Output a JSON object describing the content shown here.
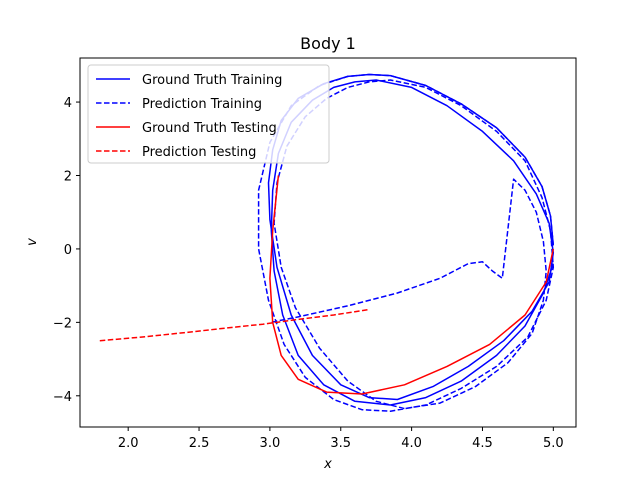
{
  "chart_data": {
    "type": "line",
    "title": "Body 1",
    "xlabel": "x",
    "ylabel": "v",
    "xlim": [
      1.66,
      5.16
    ],
    "ylim": [
      -4.85,
      5.2
    ],
    "xticks": [
      2.0,
      2.5,
      3.0,
      3.5,
      4.0,
      4.5,
      5.0
    ],
    "xtick_labels": [
      "2.0",
      "2.5",
      "3.0",
      "3.5",
      "4.0",
      "4.5",
      "5.0"
    ],
    "yticks": [
      -4,
      -2,
      0,
      2,
      4
    ],
    "ytick_labels": [
      "−4",
      "−2",
      "0",
      "2",
      "4"
    ],
    "grid": false,
    "legend_position": "top-left",
    "series": [
      {
        "name": "Ground Truth Training",
        "color": "#0000ff",
        "style": "solid",
        "x": [
          5.0,
          4.98,
          4.92,
          4.8,
          4.6,
          4.35,
          4.1,
          3.85,
          3.7,
          3.55,
          3.38,
          3.2,
          3.08,
          3.02,
          2.99,
          3.0,
          3.05,
          3.15,
          3.3,
          3.5,
          3.7,
          3.9,
          4.15,
          4.4,
          4.65,
          4.85,
          4.97,
          5.0,
          4.97,
          4.88,
          4.72,
          4.5,
          4.25,
          4.0,
          3.75,
          3.6,
          3.45,
          3.3,
          3.15,
          3.06,
          3.02,
          3.01,
          3.03,
          3.09,
          3.2,
          3.38,
          3.6,
          3.85,
          4.1,
          4.35,
          4.6,
          4.8,
          4.93,
          5.0
        ],
        "y": [
          0.1,
          0.9,
          1.7,
          2.5,
          3.3,
          3.95,
          4.45,
          4.72,
          4.75,
          4.7,
          4.5,
          4.1,
          3.5,
          2.7,
          1.8,
          0.8,
          -0.5,
          -1.8,
          -2.9,
          -3.7,
          -4.05,
          -4.1,
          -3.75,
          -3.2,
          -2.5,
          -1.7,
          -0.9,
          -0.1,
          0.7,
          1.5,
          2.4,
          3.2,
          3.9,
          4.4,
          4.6,
          4.55,
          4.4,
          4.05,
          3.45,
          2.6,
          1.6,
          0.5,
          -0.6,
          -1.8,
          -2.9,
          -3.7,
          -4.15,
          -4.25,
          -4.05,
          -3.6,
          -2.9,
          -2.1,
          -1.2,
          -0.4
        ]
      },
      {
        "name": "Prediction Training",
        "color": "#0000ff",
        "style": "dashed",
        "x": [
          5.0,
          4.98,
          4.92,
          4.8,
          4.6,
          4.35,
          4.1,
          3.85,
          3.7,
          3.55,
          3.35,
          3.15,
          3.0,
          2.92,
          2.92,
          2.99,
          3.1,
          3.25,
          3.45,
          3.65,
          3.85,
          4.1,
          4.35,
          4.6,
          4.82,
          4.95,
          5.0,
          4.98,
          4.92,
          4.8,
          4.6,
          4.35,
          4.1,
          3.85,
          3.7,
          3.55,
          3.4,
          3.25,
          3.12,
          3.05,
          3.03,
          3.08,
          3.18,
          3.35,
          3.55,
          3.75,
          3.95,
          4.2,
          4.45,
          4.68,
          4.85,
          4.93,
          4.95,
          4.93,
          4.88,
          4.8,
          4.72,
          4.64,
          4.57,
          4.5,
          4.4,
          4.2,
          3.9,
          3.55,
          3.2,
          3.0
        ],
        "y": [
          0.1,
          0.9,
          1.7,
          2.5,
          3.3,
          3.95,
          4.45,
          4.72,
          4.75,
          4.7,
          4.45,
          3.9,
          2.9,
          1.6,
          0.0,
          -1.4,
          -2.6,
          -3.5,
          -4.1,
          -4.38,
          -4.42,
          -4.25,
          -3.8,
          -3.2,
          -2.4,
          -1.4,
          -0.5,
          0.5,
          1.4,
          2.4,
          3.2,
          3.9,
          4.4,
          4.6,
          4.55,
          4.4,
          4.1,
          3.6,
          2.8,
          1.8,
          0.7,
          -0.5,
          -1.6,
          -2.7,
          -3.6,
          -4.15,
          -4.35,
          -4.2,
          -3.75,
          -3.1,
          -2.3,
          -1.4,
          -0.6,
          0.2,
          1.0,
          1.6,
          1.9,
          -0.8,
          -0.6,
          -0.35,
          -0.4,
          -0.8,
          -1.2,
          -1.55,
          -1.85,
          -2.0
        ]
      },
      {
        "name": "Ground Truth Testing",
        "color": "#ff0000",
        "style": "solid",
        "x": [
          5.0,
          4.95,
          4.8,
          4.55,
          4.25,
          3.95,
          3.65,
          3.4,
          3.2,
          3.08,
          3.02,
          3.0,
          3.02,
          3.06
        ],
        "y": [
          0.0,
          -0.9,
          -1.8,
          -2.6,
          -3.2,
          -3.7,
          -3.95,
          -3.9,
          -3.55,
          -2.9,
          -2.0,
          -0.8,
          0.5,
          2.0
        ]
      },
      {
        "name": "Prediction Testing",
        "color": "#ff0000",
        "style": "dashed",
        "x": [
          1.8,
          2.1,
          2.4,
          2.7,
          2.95,
          3.2,
          3.45,
          3.7
        ],
        "y": [
          -2.5,
          -2.4,
          -2.28,
          -2.15,
          -2.05,
          -1.92,
          -1.8,
          -1.65
        ]
      }
    ]
  }
}
